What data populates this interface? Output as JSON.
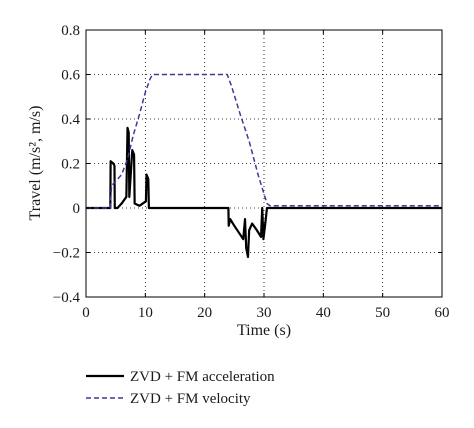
{
  "chart_data": {
    "type": "line",
    "title": "",
    "xlabel": "Time (s)",
    "ylabel": "Travel (m/s², m/s)",
    "xlim": [
      0,
      60
    ],
    "ylim": [
      -0.4,
      0.8
    ],
    "grid": true,
    "grid_style": "dotted",
    "legend_position": "bottom-left",
    "x_ticks": [
      {
        "value": 0,
        "label": "0"
      },
      {
        "value": 10,
        "label": "10"
      },
      {
        "value": 20,
        "label": "20"
      },
      {
        "value": 30,
        "label": "30"
      },
      {
        "value": 40,
        "label": "40"
      },
      {
        "value": 50,
        "label": "50"
      },
      {
        "value": 60,
        "label": "60"
      }
    ],
    "y_ticks": [
      {
        "value": -0.4,
        "label": "−0.4"
      },
      {
        "value": -0.2,
        "label": "−0.2"
      },
      {
        "value": 0,
        "label": "0"
      },
      {
        "value": 0.2,
        "label": "0.2"
      },
      {
        "value": 0.4,
        "label": "0.4"
      },
      {
        "value": 0.6,
        "label": "0.6"
      },
      {
        "value": 0.8,
        "label": "0.8"
      }
    ],
    "series": [
      {
        "name": "ZVD + FM acceleration",
        "color": "#000000",
        "style": "solid",
        "points": [
          [
            0,
            0
          ],
          [
            4.1,
            0
          ],
          [
            4.15,
            0.21
          ],
          [
            4.6,
            0.2
          ],
          [
            4.8,
            0.19
          ],
          [
            4.85,
            0.0
          ],
          [
            5.3,
            0.0
          ],
          [
            6.0,
            0.02
          ],
          [
            6.8,
            0.05
          ],
          [
            7.0,
            0.36
          ],
          [
            7.2,
            0.34
          ],
          [
            7.3,
            0.05
          ],
          [
            7.8,
            0.26
          ],
          [
            8.1,
            0.24
          ],
          [
            8.2,
            0.02
          ],
          [
            9.0,
            0.01
          ],
          [
            10.1,
            0.03
          ],
          [
            10.2,
            0.15
          ],
          [
            10.5,
            0.13
          ],
          [
            10.6,
            0.0
          ],
          [
            24.0,
            0.0
          ],
          [
            24.05,
            -0.08
          ],
          [
            24.3,
            -0.05
          ],
          [
            25.0,
            -0.08
          ],
          [
            26.0,
            -0.12
          ],
          [
            26.5,
            -0.14
          ],
          [
            26.8,
            -0.05
          ],
          [
            27.0,
            -0.18
          ],
          [
            27.3,
            -0.22
          ],
          [
            27.5,
            -0.1
          ],
          [
            28.0,
            -0.07
          ],
          [
            28.8,
            -0.1
          ],
          [
            29.5,
            -0.13
          ],
          [
            29.7,
            0.0
          ],
          [
            29.9,
            -0.14
          ],
          [
            30.3,
            -0.05
          ],
          [
            30.5,
            0.0
          ],
          [
            60,
            0.0
          ]
        ]
      },
      {
        "name": "ZVD + FM velocity",
        "color": "#3a3a9a",
        "style": "dashed",
        "points": [
          [
            0,
            0
          ],
          [
            4.1,
            0
          ],
          [
            4.3,
            0.1
          ],
          [
            5.0,
            0.12
          ],
          [
            6.0,
            0.15
          ],
          [
            7.0,
            0.22
          ],
          [
            8.0,
            0.33
          ],
          [
            9.0,
            0.42
          ],
          [
            10.0,
            0.52
          ],
          [
            10.8,
            0.58
          ],
          [
            11.2,
            0.6
          ],
          [
            23.8,
            0.6
          ],
          [
            24.5,
            0.55
          ],
          [
            26.0,
            0.42
          ],
          [
            27.5,
            0.3
          ],
          [
            29.0,
            0.15
          ],
          [
            30.5,
            0.02
          ],
          [
            31.0,
            0.01
          ],
          [
            60,
            0.01
          ]
        ]
      }
    ]
  }
}
